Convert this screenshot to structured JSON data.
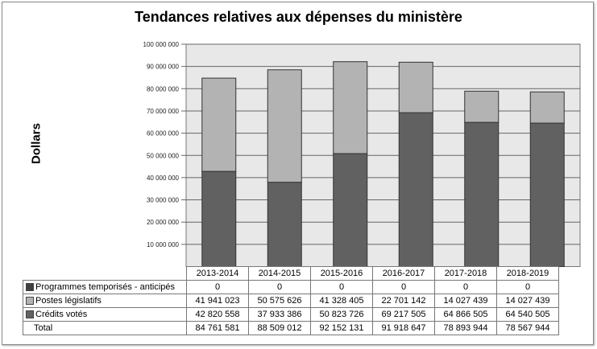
{
  "chart_data": {
    "type": "bar",
    "stacked": true,
    "title": "Tendances relatives aux dépenses du ministère",
    "ylabel": "Dollars",
    "xlabel": "",
    "ylim": [
      0,
      100000000
    ],
    "yticks": [
      "10 000 000",
      "20 000 000",
      "30 000 000",
      "40 000 000",
      "50 000 000",
      "60 000 000",
      "70 000 000",
      "80 000 000",
      "90 000 000",
      "100 000 000"
    ],
    "grid": true,
    "legend": "table-left",
    "categories": [
      "2013-2014",
      "2014-2015",
      "2015-2016",
      "2016-2017",
      "2017-2018",
      "2018-2019"
    ],
    "series": [
      {
        "name": "Programmes temporisés - anticipés",
        "color": "#3f3f3f",
        "values": [
          0,
          0,
          0,
          0,
          0,
          0
        ],
        "labels": [
          "0",
          "0",
          "0",
          "0",
          "0",
          "0"
        ]
      },
      {
        "name": "Postes législatifs",
        "color": "#b3b3b3",
        "values": [
          41941023,
          50575626,
          41328405,
          22701142,
          14027439,
          14027439
        ],
        "labels": [
          "41 941 023",
          "50 575 626",
          "41 328 405",
          "22 701 142",
          "14 027 439",
          "14 027 439"
        ]
      },
      {
        "name": "Crédits votés",
        "color": "#616161",
        "values": [
          42820558,
          37933386,
          50823726,
          69217505,
          64866505,
          64540505
        ],
        "labels": [
          "42 820 558",
          "37 933 386",
          "50 823 726",
          "69 217 505",
          "64 866 505",
          "64 540 505"
        ]
      }
    ],
    "total": {
      "name": "Total",
      "labels": [
        "84 761 581",
        "88 509 012",
        "92 152 131",
        "91 918 647",
        "78 893 944",
        "78 567 944"
      ]
    },
    "plot_background": "#e8e8e8"
  }
}
